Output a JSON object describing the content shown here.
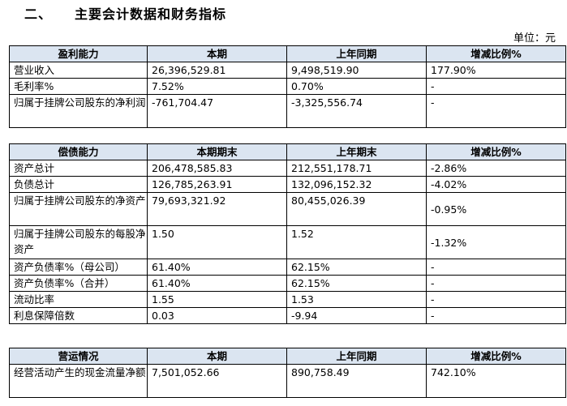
{
  "heading": {
    "number": "二、",
    "title": "主要会计数据和财务指标"
  },
  "unit": "单位：元",
  "profit": {
    "headers": [
      "盈利能力",
      "本期",
      "上年同期",
      "增减比例%"
    ],
    "rows": [
      [
        "营业收入",
        "26,396,529.81",
        "9,498,519.90",
        "177.90%"
      ],
      [
        "毛利率%",
        "7.52%",
        "0.70%",
        "-"
      ],
      [
        "归属于挂牌公司股东的净利润",
        "-761,704.47",
        "-3,325,556.74",
        "-"
      ]
    ]
  },
  "solvency": {
    "headers": [
      "偿债能力",
      "本期期末",
      "上年期末",
      "增减比例%"
    ],
    "rows": [
      [
        "资产总计",
        "206,478,585.83",
        "212,551,178.71",
        "-2.86%"
      ],
      [
        "负债总计",
        "126,785,263.91",
        "132,096,152.32",
        "-4.02%"
      ],
      [
        "归属于挂牌公司股东的净资产",
        "79,693,321.92",
        "80,455,026.39",
        "-0.95%"
      ],
      [
        "归属于挂牌公司股东的每股净资产",
        "1.50",
        "1.52",
        "-1.32%"
      ],
      [
        "资产负债率%（母公司）",
        "61.40%",
        "62.15%",
        "-"
      ],
      [
        "资产负债率%（合并）",
        "61.40%",
        "62.15%",
        "-"
      ],
      [
        "流动比率",
        "1.55",
        "1.53",
        "-"
      ],
      [
        "利息保障倍数",
        "0.03",
        "-9.94",
        "-"
      ]
    ]
  },
  "operation": {
    "headers": [
      "营运情况",
      "本期",
      "上年同期",
      "增减比例%"
    ],
    "rows": [
      [
        "经营活动产生的现金流量净额",
        "7,501,052.66",
        "890,758.49",
        "742.10%"
      ]
    ]
  }
}
